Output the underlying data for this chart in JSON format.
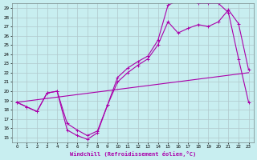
{
  "background_color": "#c8eef0",
  "grid_color": "#b0c8cc",
  "line_color": "#aa00aa",
  "xlabel": "Windchill (Refroidissement éolien,°C)",
  "xlim": [
    -0.5,
    23.5
  ],
  "ylim": [
    14.5,
    29.5
  ],
  "xticks": [
    0,
    1,
    2,
    3,
    4,
    5,
    6,
    7,
    8,
    9,
    10,
    11,
    12,
    13,
    14,
    15,
    16,
    17,
    18,
    19,
    20,
    21,
    22,
    23
  ],
  "yticks": [
    15,
    16,
    17,
    18,
    19,
    20,
    21,
    22,
    23,
    24,
    25,
    26,
    27,
    28,
    29
  ],
  "curve1_x": [
    0,
    1,
    2,
    3,
    4,
    5,
    6,
    7,
    8,
    9,
    10,
    11,
    12,
    13,
    14,
    15,
    16,
    17,
    18,
    19,
    20,
    21,
    22,
    23
  ],
  "curve1_y": [
    18.8,
    18.3,
    17.8,
    19.8,
    20.0,
    15.8,
    15.2,
    14.8,
    15.5,
    18.5,
    21.5,
    22.5,
    23.2,
    23.8,
    25.5,
    29.3,
    29.8,
    29.8,
    29.5,
    29.5,
    29.5,
    28.5,
    23.5,
    18.8
  ],
  "curve2_x": [
    0,
    1,
    2,
    3,
    4,
    5,
    6,
    7,
    8,
    9,
    10,
    11,
    12,
    13,
    14,
    15,
    16,
    17,
    18,
    19,
    20,
    21,
    22,
    23
  ],
  "curve2_y": [
    18.8,
    18.3,
    17.8,
    19.8,
    20.0,
    16.5,
    15.8,
    15.2,
    15.7,
    18.5,
    21.0,
    22.0,
    22.8,
    23.5,
    25.0,
    27.5,
    26.3,
    26.8,
    27.2,
    27.0,
    27.5,
    28.8,
    27.3,
    22.3
  ],
  "curve3_x": [
    0,
    23
  ],
  "curve3_y": [
    18.8,
    22.0
  ]
}
